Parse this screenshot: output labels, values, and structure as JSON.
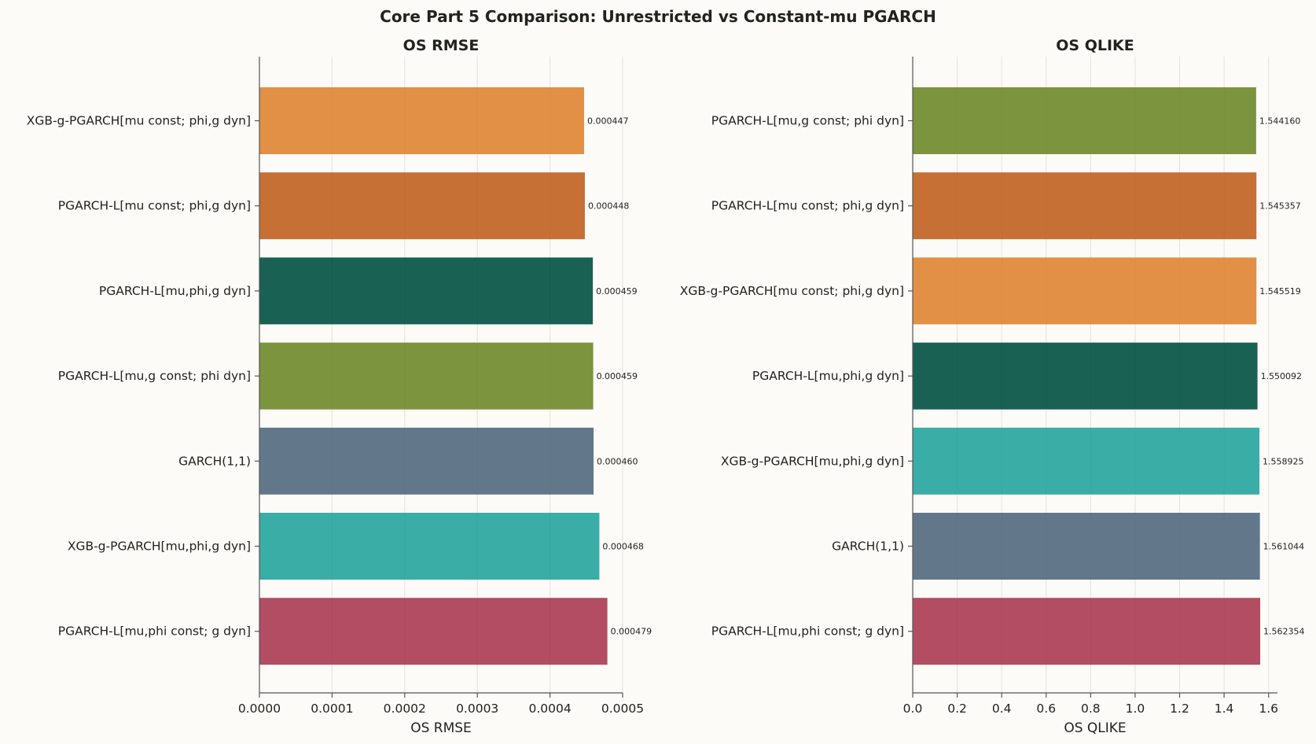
{
  "figure_title": "Core Part 5 Comparison: Unrestricted vs Constant-mu PGARCH",
  "chart_data": [
    {
      "type": "bar",
      "orientation": "horizontal",
      "title": "OS RMSE",
      "xlabel": "OS RMSE",
      "ylabel": "",
      "xlim": [
        0,
        0.0005
      ],
      "xticks": [
        0,
        0.0001,
        0.0002,
        0.0003,
        0.0004,
        0.0005
      ],
      "xtick_labels": [
        "0.0000",
        "0.0001",
        "0.0002",
        "0.0003",
        "0.0004",
        "0.0005"
      ],
      "grid": true,
      "categories": [
        "XGB-g-PGARCH[mu const; phi,g dyn]",
        "PGARCH-L[mu const; phi,g dyn]",
        "PGARCH-L[mu,phi,g dyn]",
        "PGARCH-L[mu,g const; phi dyn]",
        "GARCH(1,1)",
        "XGB-g-PGARCH[mu,phi,g dyn]",
        "PGARCH-L[mu,phi const; g dyn]"
      ],
      "values": [
        0.000447,
        0.000448,
        0.000459,
        0.0004595,
        0.00046,
        0.000468,
        0.000479
      ],
      "value_labels": [
        "0.000447",
        "0.000448",
        "0.000459",
        "0.000459",
        "0.000460",
        "0.000468",
        "0.000479"
      ],
      "colors": [
        "#df8431",
        "#c0601f",
        "#005040",
        "#6e8828",
        "#51697d",
        "#25a49c",
        "#aa3a52"
      ]
    },
    {
      "type": "bar",
      "orientation": "horizontal",
      "title": "OS QLIKE",
      "xlabel": "OS QLIKE",
      "ylabel": "",
      "xlim": [
        0,
        1.64
      ],
      "xticks": [
        0,
        0.2,
        0.4,
        0.6,
        0.8,
        1.0,
        1.2,
        1.4,
        1.6
      ],
      "xtick_labels": [
        "0.0",
        "0.2",
        "0.4",
        "0.6",
        "0.8",
        "1.0",
        "1.2",
        "1.4",
        "1.6"
      ],
      "grid": true,
      "categories": [
        "PGARCH-L[mu,g const; phi dyn]",
        "PGARCH-L[mu const; phi,g dyn]",
        "XGB-g-PGARCH[mu const; phi,g dyn]",
        "PGARCH-L[mu,phi,g dyn]",
        "XGB-g-PGARCH[mu,phi,g dyn]",
        "GARCH(1,1)",
        "PGARCH-L[mu,phi const; g dyn]"
      ],
      "values": [
        1.54416,
        1.545357,
        1.545519,
        1.550092,
        1.558925,
        1.561044,
        1.562354
      ],
      "value_labels": [
        "1.544160",
        "1.545357",
        "1.545519",
        "1.550092",
        "1.558925",
        "1.561044",
        "1.562354"
      ],
      "colors": [
        "#6e8828",
        "#c0601f",
        "#df8431",
        "#005040",
        "#25a49c",
        "#51697d",
        "#aa3a52"
      ]
    }
  ]
}
